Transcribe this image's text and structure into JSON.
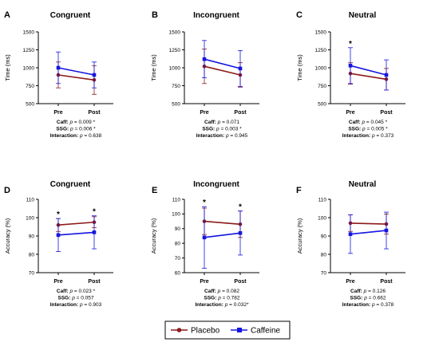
{
  "legend": {
    "placement": "bottom-center",
    "items": [
      {
        "name": "Placebo",
        "color": "#8B1A1A"
      },
      {
        "name": "Caffeine",
        "color": "#1515E0"
      }
    ]
  },
  "chart_data": [
    {
      "type": "line",
      "letter": "A",
      "title": "Congruent",
      "xlabel": "",
      "ylabel": "Time (ms)",
      "categories": [
        "Pre",
        "Post"
      ],
      "ylim": [
        500,
        1500
      ],
      "yticks": [
        500,
        750,
        1000,
        1250,
        1500
      ],
      "series": [
        {
          "name": "Placebo",
          "color": "#8B1A1A",
          "values": [
            900,
            830
          ],
          "err": [
            180,
            200
          ]
        },
        {
          "name": "Caffeine",
          "color": "#1515E0",
          "values": [
            1000,
            900
          ],
          "err": [
            220,
            180
          ]
        }
      ],
      "significance": [],
      "stats": [
        {
          "key": "Caff:",
          "text": "p = 0.009 *"
        },
        {
          "key": "SSG:",
          "text": "p = 0.006 *"
        },
        {
          "key": "Interaction:",
          "text": "p = 0.638"
        }
      ]
    },
    {
      "type": "line",
      "letter": "B",
      "title": "Incongruent",
      "xlabel": "",
      "ylabel": "Time (ms)",
      "categories": [
        "Pre",
        "Post"
      ],
      "ylim": [
        500,
        1500
      ],
      "yticks": [
        500,
        750,
        1000,
        1250,
        1500
      ],
      "series": [
        {
          "name": "Placebo",
          "color": "#8B1A1A",
          "values": [
            1020,
            900
          ],
          "err": [
            240,
            170
          ]
        },
        {
          "name": "Caffeine",
          "color": "#1515E0",
          "values": [
            1120,
            990
          ],
          "err": [
            260,
            250
          ]
        }
      ],
      "significance": [],
      "stats": [
        {
          "key": "Caff:",
          "text": "p = 0.071"
        },
        {
          "key": "SSG:",
          "text": "p = 0.003 *"
        },
        {
          "key": "Interaction:",
          "text": "p = 0.945"
        }
      ]
    },
    {
      "type": "line",
      "letter": "C",
      "title": "Neutral",
      "xlabel": "",
      "ylabel": "Time (ms)",
      "categories": [
        "Pre",
        "Post"
      ],
      "ylim": [
        500,
        1500
      ],
      "yticks": [
        500,
        750,
        1000,
        1250,
        1500
      ],
      "series": [
        {
          "name": "Placebo",
          "color": "#8B1A1A",
          "values": [
            920,
            840
          ],
          "err": [
            150,
            150
          ]
        },
        {
          "name": "Caffeine",
          "color": "#1515E0",
          "values": [
            1030,
            900
          ],
          "err": [
            250,
            210
          ]
        }
      ],
      "significance": [
        {
          "category": "Pre",
          "symbol": "*"
        }
      ],
      "stats": [
        {
          "key": "Caff:",
          "text": "p = 0.045 *"
        },
        {
          "key": "SSG:",
          "text": "p = 0.005 *"
        },
        {
          "key": "Interaction:",
          "text": "p = 0.373"
        }
      ]
    },
    {
      "type": "line",
      "letter": "D",
      "title": "Congruent",
      "xlabel": "",
      "ylabel": "Accuracy (%)",
      "categories": [
        "Pre",
        "Post"
      ],
      "ylim": [
        70,
        110
      ],
      "yticks": [
        70,
        80,
        90,
        100,
        110
      ],
      "series": [
        {
          "name": "Placebo",
          "color": "#8B1A1A",
          "values": [
            96,
            97.5
          ],
          "err": [
            3.5,
            3.0
          ]
        },
        {
          "name": "Caffeine",
          "color": "#1515E0",
          "values": [
            90.5,
            92
          ],
          "err": [
            9.0,
            9.0
          ]
        }
      ],
      "significance": [
        {
          "category": "Pre",
          "symbol": "*"
        },
        {
          "category": "Post",
          "symbol": "*"
        }
      ],
      "stats": [
        {
          "key": "Caff:",
          "text": "p = 0.023 *"
        },
        {
          "key": "SSG:",
          "text": "p = 0.057"
        },
        {
          "key": "Interaction:",
          "text": "p = 0.903"
        }
      ]
    },
    {
      "type": "line",
      "letter": "E",
      "title": "Incongruent",
      "xlabel": "",
      "ylabel": "Accuracy (%)",
      "categories": [
        "Pre",
        "Post"
      ],
      "ylim": [
        60,
        110
      ],
      "yticks": [
        60,
        70,
        80,
        90,
        100,
        110
      ],
      "series": [
        {
          "name": "Placebo",
          "color": "#8B1A1A",
          "values": [
            95,
            93
          ],
          "err": [
            9,
            9
          ]
        },
        {
          "name": "Caffeine",
          "color": "#1515E0",
          "values": [
            84,
            87
          ],
          "err": [
            21,
            15
          ]
        }
      ],
      "significance": [
        {
          "category": "Pre",
          "symbol": "*"
        },
        {
          "category": "Post",
          "symbol": "*"
        }
      ],
      "stats": [
        {
          "key": "Caff:",
          "text": "p = 0.082"
        },
        {
          "key": "SSG:",
          "text": "p = 0.782"
        },
        {
          "key": "Interaction:",
          "text": "p = 0.032*"
        }
      ]
    },
    {
      "type": "line",
      "letter": "F",
      "title": "Neutral",
      "xlabel": "",
      "ylabel": "Accuracy (%)",
      "categories": [
        "Pre",
        "Post"
      ],
      "ylim": [
        70,
        110
      ],
      "yticks": [
        70,
        80,
        90,
        100,
        110
      ],
      "series": [
        {
          "name": "Placebo",
          "color": "#8B1A1A",
          "values": [
            97,
            96.5
          ],
          "err": [
            4.5,
            5.5
          ]
        },
        {
          "name": "Caffeine",
          "color": "#1515E0",
          "values": [
            91,
            93
          ],
          "err": [
            10.5,
            10
          ]
        }
      ],
      "significance": [],
      "stats": [
        {
          "key": "Caff:",
          "text": "p = 0.126"
        },
        {
          "key": "SSG:",
          "text": "p = 0.662"
        },
        {
          "key": "Interaction:",
          "text": "p = 0.378"
        }
      ]
    }
  ]
}
